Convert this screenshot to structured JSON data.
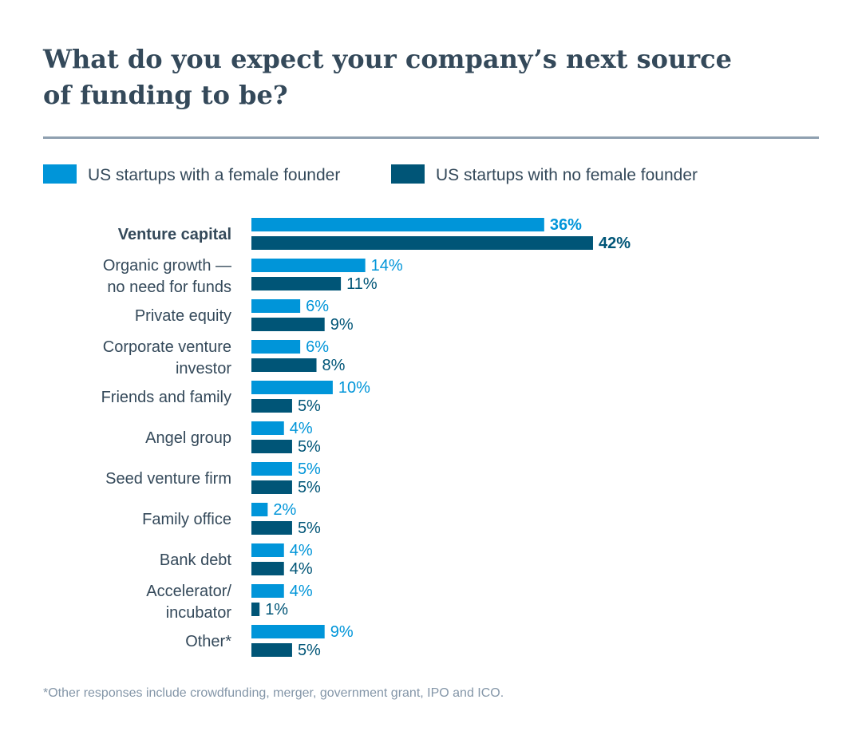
{
  "chart_data": {
    "type": "bar",
    "orientation": "horizontal",
    "title": [
      "What do you expect your company’s next source",
      "of funding to be?"
    ],
    "categories": [
      [
        "Venture capital"
      ],
      [
        "Organic growth —",
        "no need for funds"
      ],
      [
        "Private equity"
      ],
      [
        "Corporate venture",
        "investor"
      ],
      [
        "Friends and family"
      ],
      [
        "Angel group"
      ],
      [
        "Seed venture firm"
      ],
      [
        "Family office"
      ],
      [
        "Bank debt"
      ],
      [
        "Accelerator/",
        "incubator"
      ],
      [
        "Other*"
      ]
    ],
    "highlighted_category": "Venture capital",
    "series": [
      {
        "name": "US startups with a female founder",
        "color": "#0095d9",
        "values": [
          36,
          14,
          6,
          6,
          10,
          4,
          5,
          2,
          4,
          4,
          9
        ]
      },
      {
        "name": "US startups with no female founder",
        "color": "#005577",
        "values": [
          42,
          11,
          9,
          8,
          5,
          5,
          5,
          5,
          4,
          1,
          5
        ]
      }
    ],
    "value_suffix": "%",
    "legend_position": "top-left",
    "grid": false,
    "footnote": "*Other responses include crowdfunding, merger, government grant, IPO and ICO."
  },
  "colors": {
    "title": "#34495a",
    "rule": "#8fa0b0",
    "footnote": "#8496a8"
  }
}
